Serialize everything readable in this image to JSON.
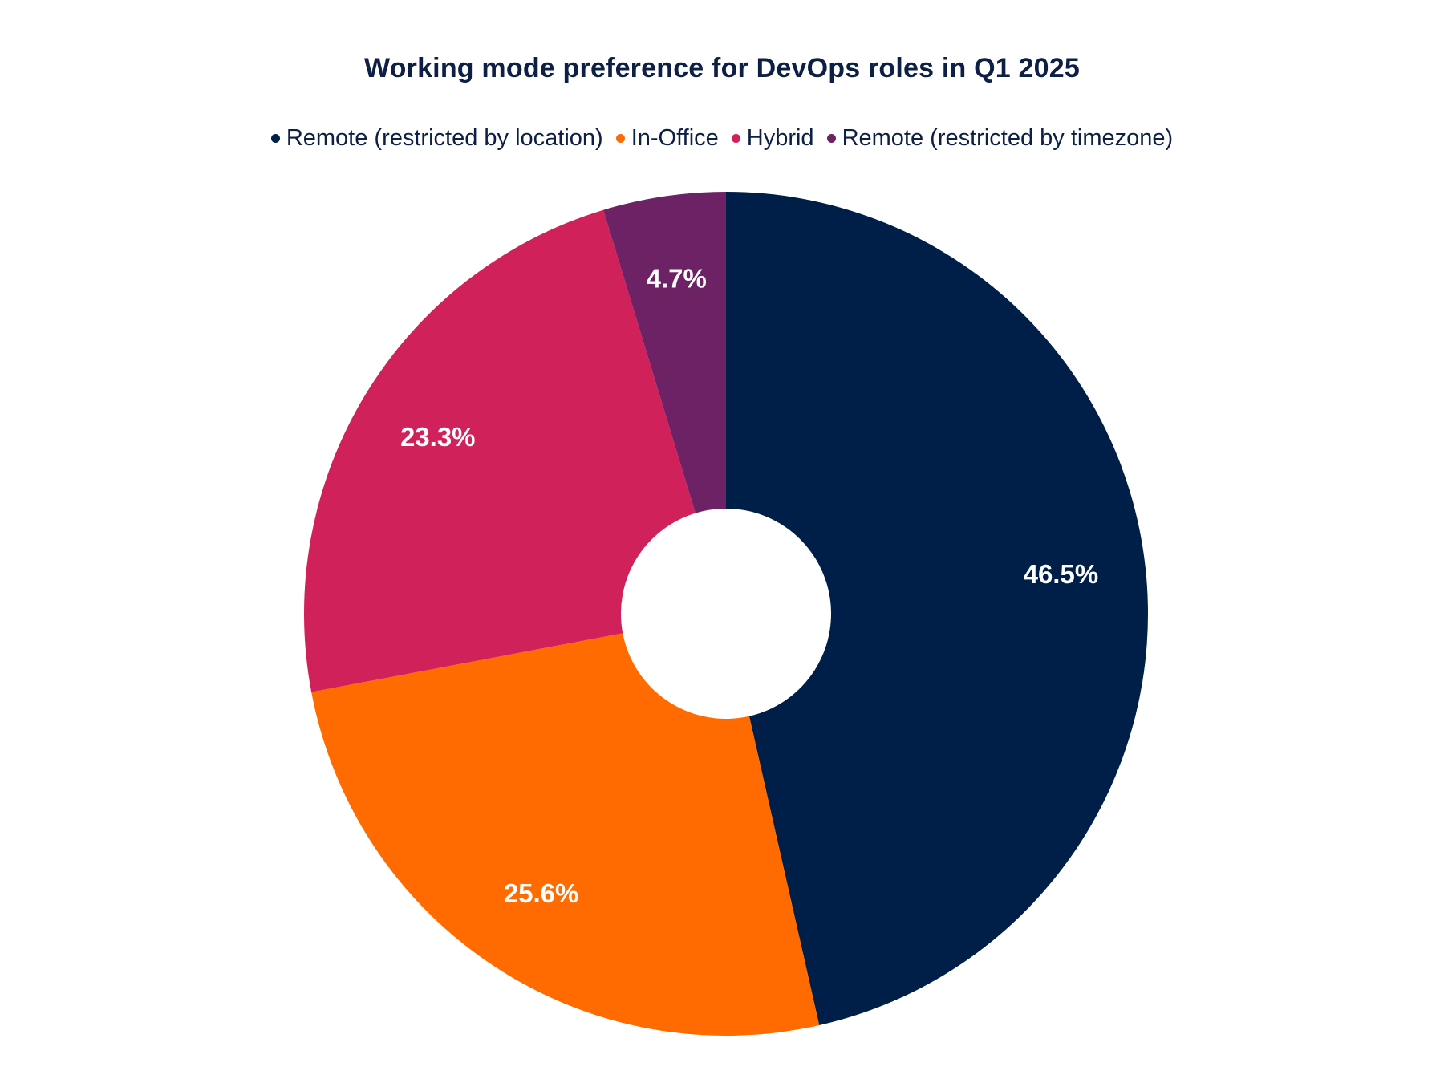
{
  "chart_data": {
    "type": "pie",
    "title": "Working mode preference for DevOps roles in Q1 2025",
    "legend_position": "top",
    "donut": true,
    "categories": [
      "Remote (restricted by location)",
      "In-Office",
      "Hybrid",
      "Remote (restricted by timezone)"
    ],
    "values": [
      46.5,
      25.6,
      23.3,
      4.7
    ],
    "labels": [
      "46.5%",
      "25.6%",
      "23.3%",
      "4.7%"
    ],
    "colors": [
      "#001f48",
      "#ff6b00",
      "#d1215b",
      "#6d2266"
    ]
  }
}
